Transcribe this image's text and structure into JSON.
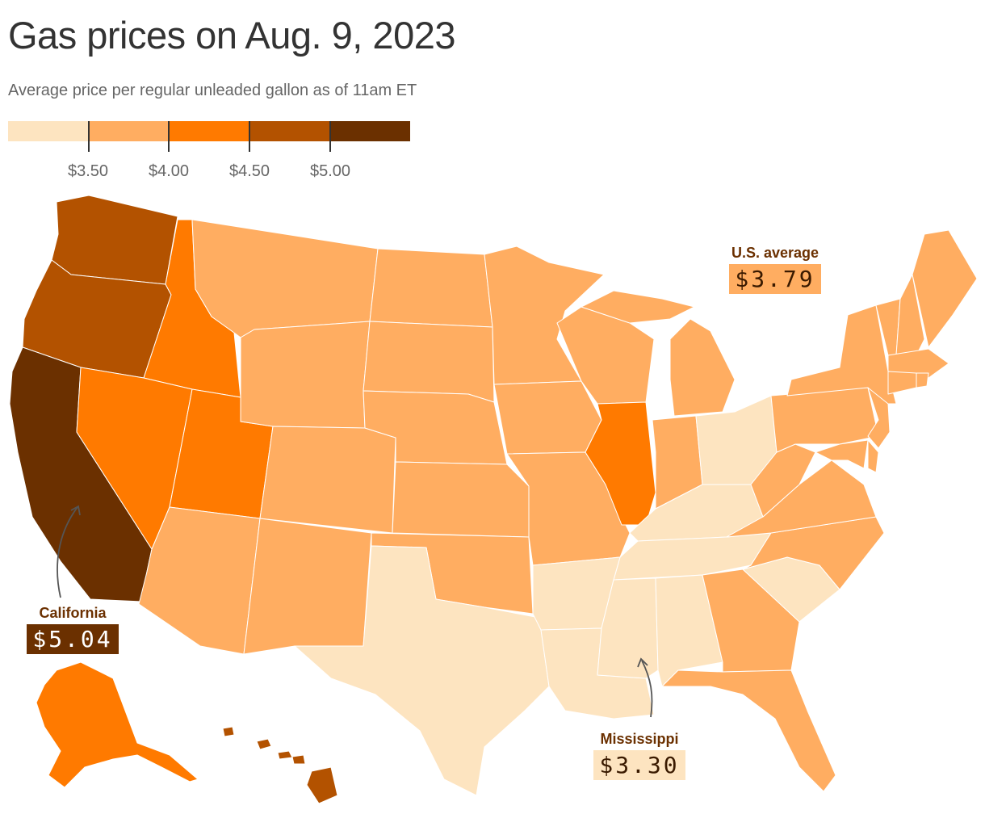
{
  "title": "Gas prices on Aug. 9, 2023",
  "subtitle": "Average price per regular unleaded gallon as of 11am ET",
  "legend": {
    "colors": [
      "#fde4c0",
      "#ffad61",
      "#ff7a00",
      "#b35200",
      "#6b3000"
    ],
    "ticks": [
      "$3.50",
      "$4.00",
      "$4.50",
      "$5.00"
    ]
  },
  "callouts": {
    "us_average": {
      "label": "U.S. average",
      "price": "$3.79",
      "bg": "#ffad61",
      "fg": "#3a1a00"
    },
    "california": {
      "label": "California",
      "price": "$5.04",
      "bg": "#6b3000",
      "fg": "#ffffff"
    },
    "mississippi": {
      "label": "Mississippi",
      "price": "$3.30",
      "bg": "#fde4c0",
      "fg": "#3a1a00"
    }
  }
}
